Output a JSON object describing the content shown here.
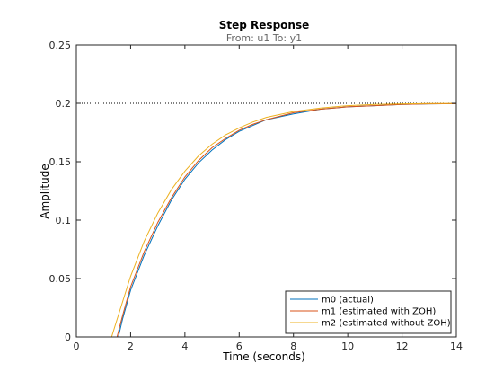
{
  "chart_data": {
    "type": "line",
    "title": "Step Response",
    "subtitle": "From: u1  To: y1",
    "xlabel": "Time (seconds)",
    "ylabel": "Amplitude",
    "xlim": [
      0,
      14
    ],
    "ylim": [
      0,
      0.25
    ],
    "xticks": [
      "0",
      "2",
      "4",
      "6",
      "8",
      "10",
      "12",
      "14"
    ],
    "yticks": [
      "0",
      "0.05",
      "0.1",
      "0.15",
      "0.2",
      "0.25"
    ],
    "grid": false,
    "legend_position": "bottom-right",
    "reference_line": {
      "y": 0.2,
      "style": "dotted"
    },
    "series": [
      {
        "name": "m0 (actual)",
        "color": "#0072BD",
        "x": [
          0,
          1.55,
          1.7,
          2.0,
          2.5,
          3.0,
          3.5,
          4.0,
          4.5,
          5.0,
          5.5,
          6.0,
          6.5,
          7.0,
          8.0,
          9.0,
          10.0,
          11.0,
          12.0,
          13.0,
          14.0
        ],
        "y": [
          0,
          0,
          0.015,
          0.04,
          0.07,
          0.095,
          0.117,
          0.135,
          0.149,
          0.16,
          0.169,
          0.176,
          0.181,
          0.186,
          0.191,
          0.195,
          0.197,
          0.198,
          0.199,
          0.1995,
          0.1997
        ]
      },
      {
        "name": "m1 (estimated with ZOH)",
        "color": "#D95319",
        "x": [
          0,
          1.5,
          1.7,
          2.0,
          2.5,
          3.0,
          3.5,
          4.0,
          4.5,
          5.0,
          5.5,
          6.0,
          6.5,
          7.0,
          8.0,
          9.0,
          10.0,
          11.0,
          12.0,
          13.0,
          14.0
        ],
        "y": [
          0,
          0,
          0.018,
          0.043,
          0.073,
          0.098,
          0.119,
          0.137,
          0.151,
          0.162,
          0.17,
          0.177,
          0.182,
          0.186,
          0.192,
          0.195,
          0.197,
          0.198,
          0.199,
          0.1995,
          0.1997
        ]
      },
      {
        "name": "m2 (estimated without ZOH)",
        "color": "#EDB120",
        "x": [
          0,
          1.3,
          1.5,
          2.0,
          2.5,
          3.0,
          3.5,
          4.0,
          4.5,
          5.0,
          5.5,
          6.0,
          6.5,
          7.0,
          8.0,
          9.0,
          10.0,
          11.0,
          12.0,
          13.0,
          14.0
        ],
        "y": [
          0,
          0,
          0.015,
          0.052,
          0.082,
          0.106,
          0.126,
          0.142,
          0.155,
          0.165,
          0.173,
          0.179,
          0.184,
          0.188,
          0.193,
          0.196,
          0.198,
          0.199,
          0.1995,
          0.1998,
          0.1999
        ]
      }
    ]
  }
}
